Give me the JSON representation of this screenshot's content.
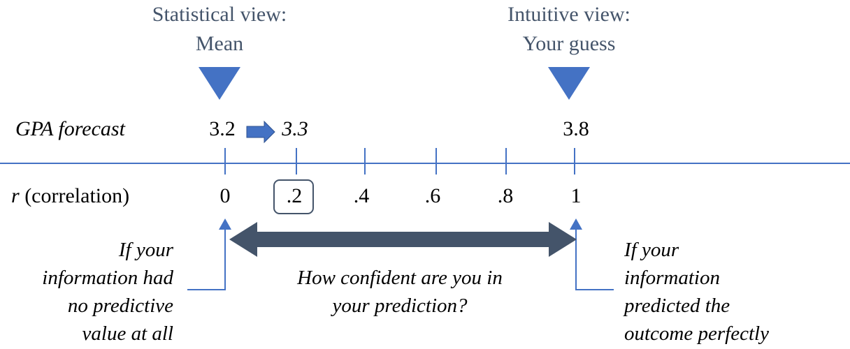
{
  "headers": {
    "statistical": {
      "line1": "Statistical view:",
      "line2": "Mean"
    },
    "intuitive": {
      "line1": "Intuitive view:",
      "line2": "Your guess"
    }
  },
  "forecast": {
    "label": "GPA forecast",
    "mean_value": "3.2",
    "adjusted_value": "3.3",
    "guess_value": "3.8"
  },
  "correlation": {
    "label_symbol": "r",
    "label_text": " (correlation)",
    "ticks": [
      "0",
      ".2",
      ".4",
      ".6",
      ".8",
      "1"
    ],
    "highlighted": ".2"
  },
  "notes": {
    "left": [
      "If your",
      "information had",
      "no predictive",
      "value at all"
    ],
    "center": [
      "How confident are you in",
      "your prediction?"
    ],
    "right": [
      "If your",
      "information",
      "predicted the",
      "outcome perfectly"
    ]
  },
  "colors": {
    "accent": "#4472c4",
    "line": "#4472c4",
    "dark_arrow": "#44546a",
    "header_text": "#44546a"
  }
}
